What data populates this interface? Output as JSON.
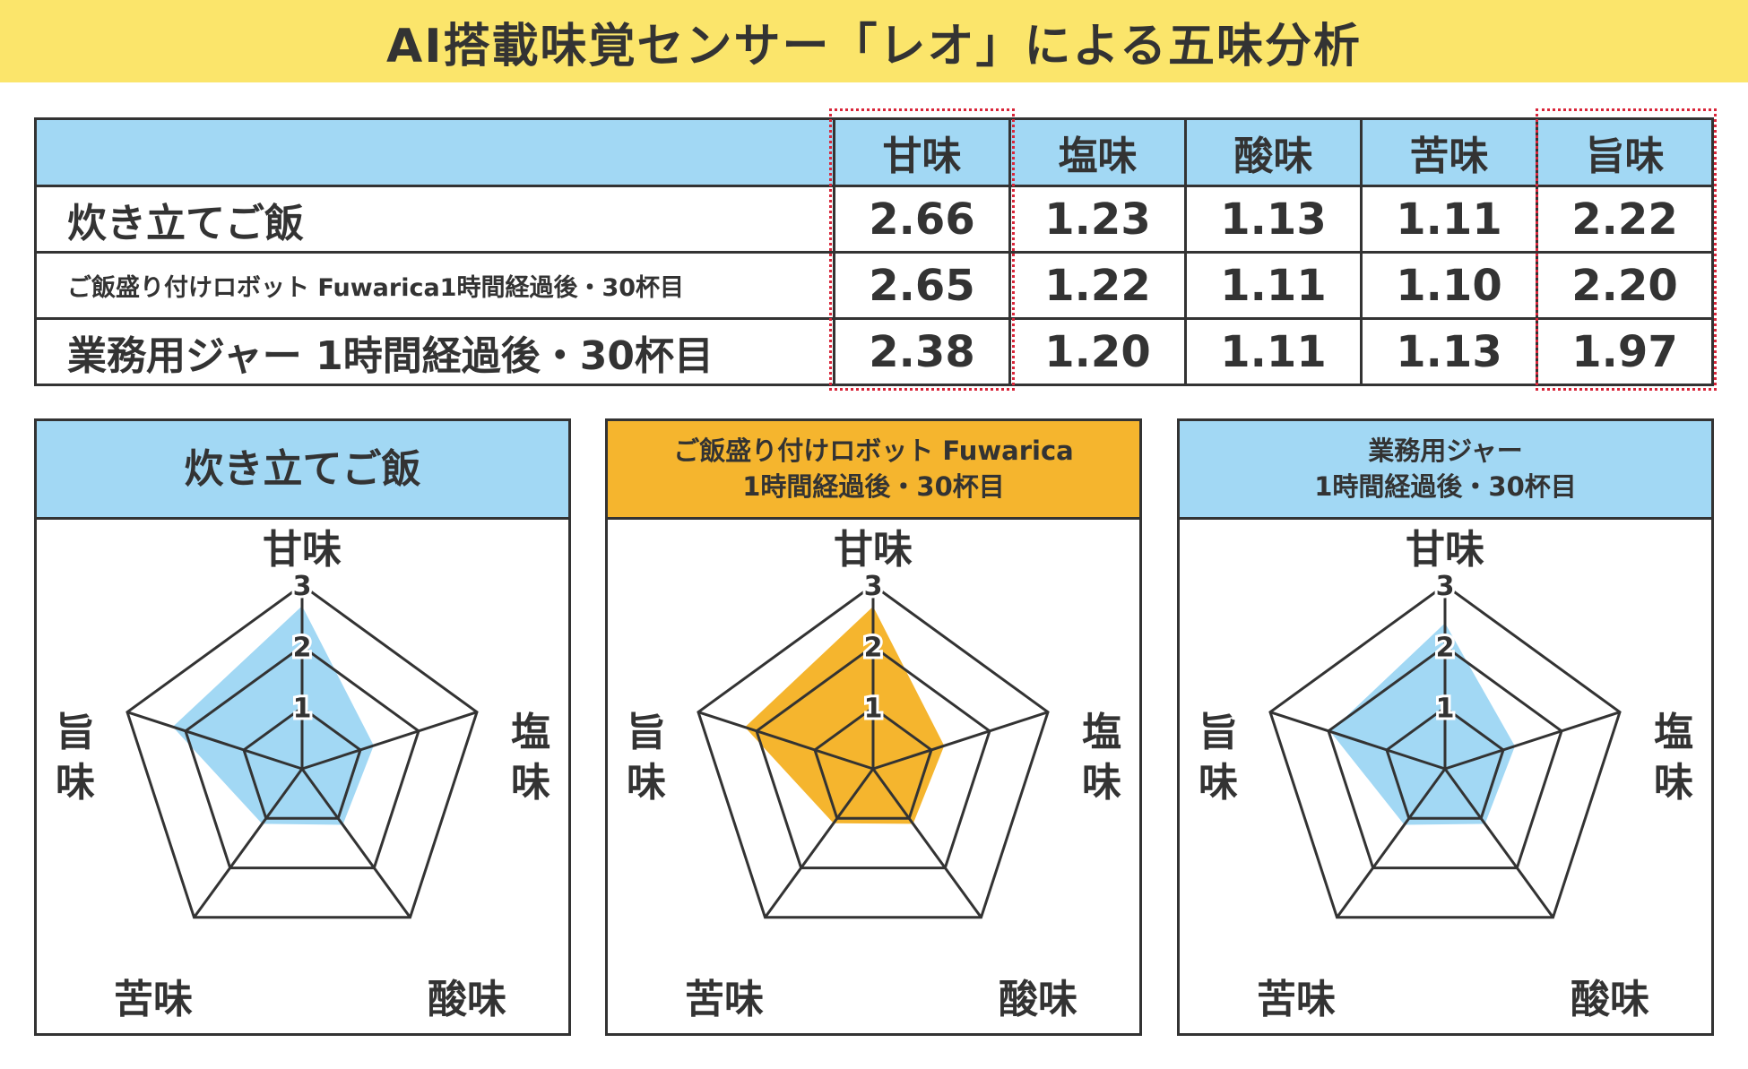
{
  "title": "AI搭載味覚センサー「レオ」による五味分析",
  "table": {
    "headers": [
      "甘味",
      "塩味",
      "酸味",
      "苦味",
      "旨味"
    ],
    "rows": [
      {
        "label": "炊き立てご飯",
        "values": [
          "2.66",
          "1.23",
          "1.13",
          "1.11",
          "2.22"
        ]
      },
      {
        "label": "ご飯盛り付けロボット Fuwarica1時間経過後・30杯目",
        "values": [
          "2.65",
          "1.22",
          "1.11",
          "1.10",
          "2.20"
        ]
      },
      {
        "label": "業務用ジャー 1時間経過後・30杯目",
        "values": [
          "2.38",
          "1.20",
          "1.11",
          "1.13",
          "1.97"
        ]
      }
    ]
  },
  "panels": [
    {
      "title_line1": "炊き立てご飯",
      "title_line2": "",
      "header_color": "#a2d8f4",
      "fill_color": "#a2d8f4"
    },
    {
      "title_line1": "ご飯盛り付けロボット Fuwarica",
      "title_line2": "1時間経過後・30杯目",
      "header_color": "#f5b52e",
      "fill_color": "#f5b52e"
    },
    {
      "title_line1": "業務用ジャー",
      "title_line2": "1時間経過後・30杯目",
      "header_color": "#a2d8f4",
      "fill_color": "#a2d8f4"
    }
  ],
  "chart_data": [
    {
      "type": "radar",
      "title": "炊き立てご飯",
      "axes": [
        "甘味",
        "塩味",
        "酸味",
        "苦味",
        "旨味"
      ],
      "rlim": [
        0,
        3
      ],
      "rticks": [
        "1",
        "2",
        "3"
      ],
      "values": [
        2.66,
        1.23,
        1.13,
        1.11,
        2.22
      ]
    },
    {
      "type": "radar",
      "title": "ご飯盛り付けロボット Fuwarica 1時間経過後・30杯目",
      "axes": [
        "甘味",
        "塩味",
        "酸味",
        "苦味",
        "旨味"
      ],
      "rlim": [
        0,
        3
      ],
      "rticks": [
        "1",
        "2",
        "3"
      ],
      "values": [
        2.65,
        1.22,
        1.11,
        1.1,
        2.2
      ]
    },
    {
      "type": "radar",
      "title": "業務用ジャー 1時間経過後・30杯目",
      "axes": [
        "甘味",
        "塩味",
        "酸味",
        "苦味",
        "旨味"
      ],
      "rlim": [
        0,
        3
      ],
      "rticks": [
        "1",
        "2",
        "3"
      ],
      "values": [
        2.38,
        1.2,
        1.11,
        1.13,
        1.97
      ]
    }
  ]
}
